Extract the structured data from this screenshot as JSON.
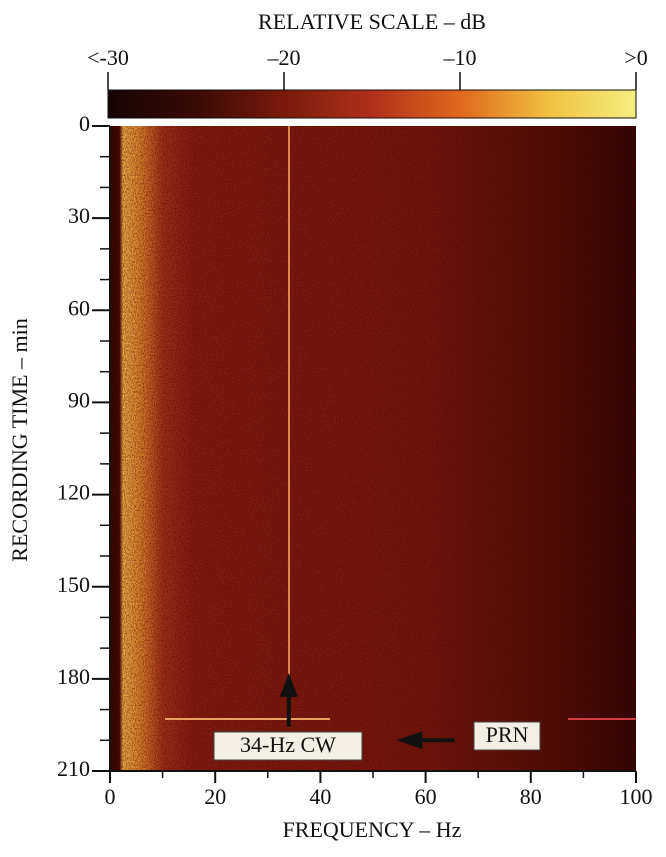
{
  "chart_data": {
    "type": "spectrogram",
    "title": "RELATIVE SCALE – dB",
    "colorbar": {
      "lim": [
        -30,
        0
      ],
      "ticks": [
        {
          "value": -30,
          "label": "<-30"
        },
        {
          "value": -20,
          "label": "–20"
        },
        {
          "value": -10,
          "label": "–10"
        },
        {
          "value": 0,
          "label": ">0"
        }
      ],
      "colors": [
        "#140404",
        "#3a0a06",
        "#7a1a0c",
        "#b0301a",
        "#e0681c",
        "#f0c040",
        "#f4f080"
      ]
    },
    "x_label": "FREQUENCY – Hz",
    "y_label": "RECORDING TIME – min",
    "xlim": [
      0,
      100
    ],
    "xticks": [
      0,
      20,
      40,
      60,
      80,
      100
    ],
    "xminorticks": [
      10,
      30,
      50,
      70,
      90
    ],
    "ylim": [
      0,
      210
    ],
    "yticks": [
      0,
      30,
      60,
      90,
      120,
      150,
      180,
      210
    ],
    "yminorticks": [
      10,
      20,
      40,
      50,
      70,
      80,
      100,
      110,
      130,
      140,
      160,
      170,
      190,
      200
    ],
    "y_inverted": true,
    "annotations": [
      {
        "text": "34-Hz CW",
        "x": 34,
        "y": 180
      },
      {
        "text": "PRN",
        "x": 56,
        "y": 200
      }
    ]
  }
}
